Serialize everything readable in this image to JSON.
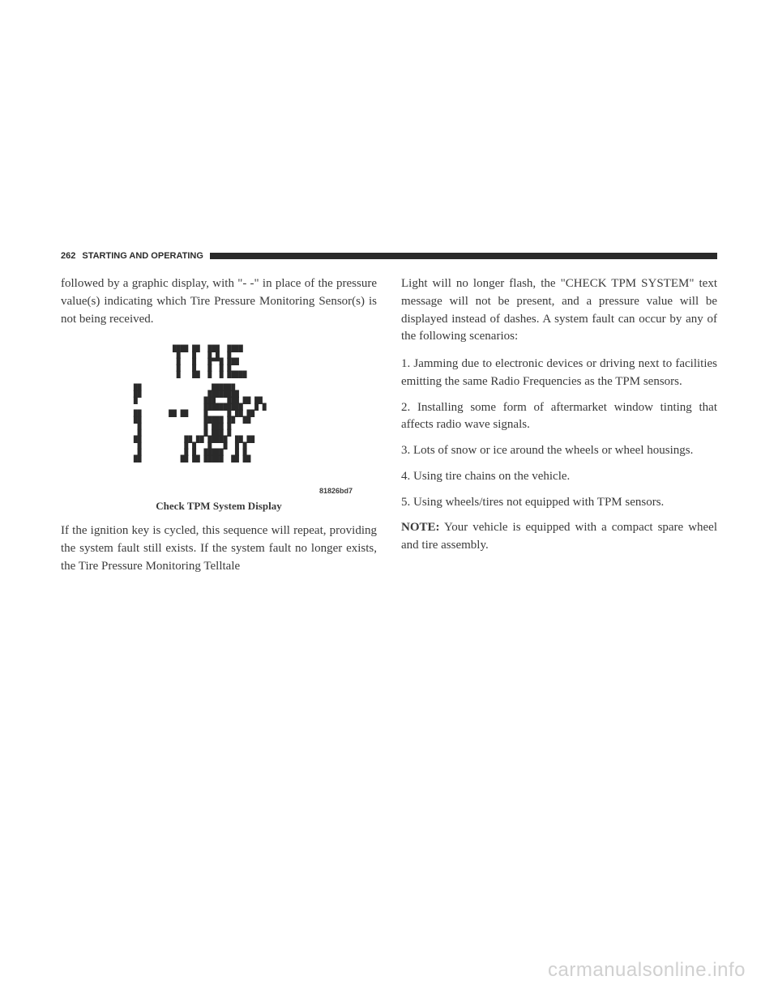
{
  "header": {
    "page_number": "262",
    "section": "STARTING AND OPERATING"
  },
  "left_column": {
    "para1": "followed by a graphic display, with \"- -\" in place of the pressure value(s) indicating which Tire Pressure Monitoring Sensor(s) is not being received.",
    "figure": {
      "code": "81826bd7",
      "caption": "Check TPM System Display",
      "pixel_art": "           ████ ██  ███  ████\n            █   █   █ █  █\n            █   █   █▀▀█ ███\n            █   █   █  █ █\n            █   ██  █  █ █████\n\n ██                  ██████\n ██                 ████████\n █                 ███   ███ ██ ██\n                   ██████████   █ █\n ██       ██ ██    █     █ ██ ██\n ██                █████ ██  ██\n  █                █ ███ █\n  █                █ ███ █\n ██           ██ ██ █████  ██ ██\n  █           █ █   █   █  █ █\n  █           █ █  █████   █ █\n ██          ██ ██ █████  ██ ██"
    },
    "para2": "If the ignition key is cycled, this sequence will repeat, providing the system fault still exists. If the system fault no longer exists, the Tire Pressure Monitoring Telltale"
  },
  "right_column": {
    "para1": "Light will no longer flash, the \"CHECK TPM SYSTEM\" text message will not be present, and a pressure value will be displayed instead of dashes. A system fault can occur by any of the following scenarios:",
    "item1": "1. Jamming due to electronic devices or driving next to facilities emitting the same Radio Frequencies as the TPM sensors.",
    "item2": "2. Installing some form of aftermarket window tinting that affects radio wave signals.",
    "item3": "3. Lots of snow or ice around the wheels or wheel housings.",
    "item4": "4. Using tire chains on the vehicle.",
    "item5": "5. Using wheels/tires not equipped with TPM sensors.",
    "note_label": "NOTE:",
    "note_text": "Your vehicle is equipped with a compact spare wheel and tire assembly."
  },
  "watermark": "carmanualsonline.info",
  "colors": {
    "text": "#3a3a3a",
    "bar": "#2a2a2a",
    "background": "#ffffff",
    "watermark": "#d0d0d0"
  }
}
